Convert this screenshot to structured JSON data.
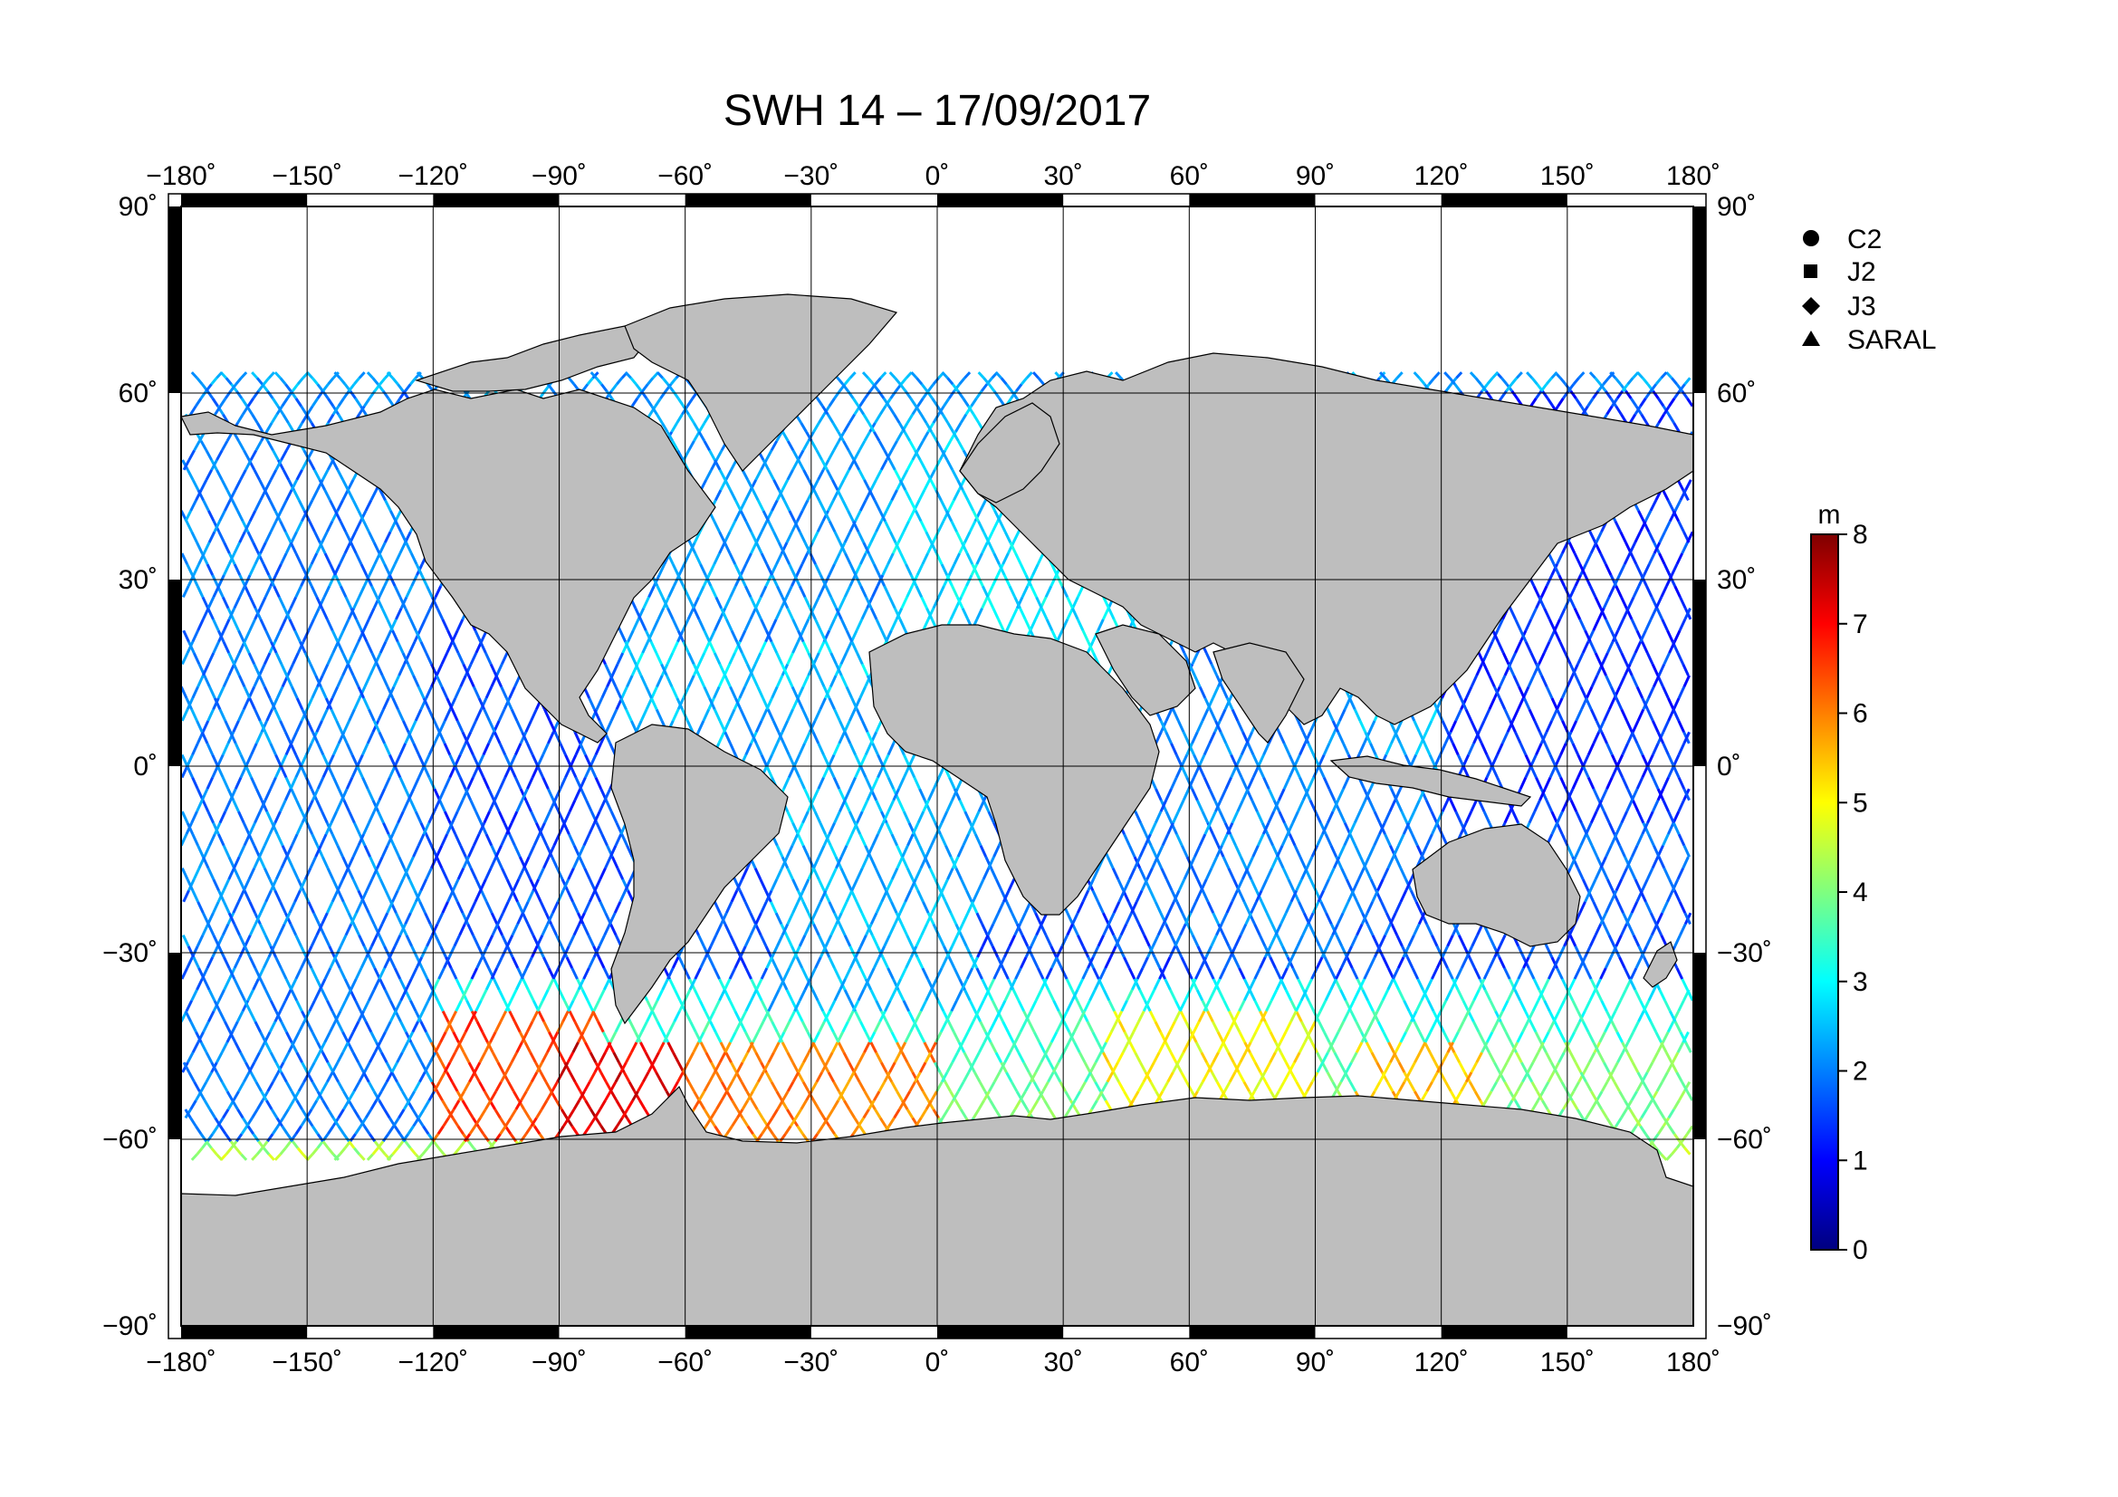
{
  "title": "SWH 14 – 17/09/2017",
  "map": {
    "projection": "equirectangular",
    "lon_range": [
      -180,
      180
    ],
    "lat_range": [
      -90,
      90
    ],
    "lon_ticks": [
      -180,
      -150,
      -120,
      -90,
      -60,
      -30,
      0,
      30,
      60,
      90,
      120,
      150,
      180
    ],
    "lat_ticks": [
      90,
      60,
      30,
      0,
      -30,
      -60,
      -90
    ],
    "lon_tick_labels": [
      "−180˚",
      "−150˚",
      "−120˚",
      "−90˚",
      "−60˚",
      "−30˚",
      "0˚",
      "30˚",
      "60˚",
      "90˚",
      "120˚",
      "150˚",
      "180˚"
    ],
    "lat_tick_labels": [
      "90˚",
      "60˚",
      "30˚",
      "0˚",
      "−30˚",
      "−60˚",
      "−90˚"
    ],
    "grid": true,
    "land_color": "#bebebe",
    "ocean_color": "#ffffff"
  },
  "legend": {
    "placement": "top-right",
    "entries": [
      {
        "label": "C2",
        "marker": "circle"
      },
      {
        "label": "J2",
        "marker": "square"
      },
      {
        "label": "J3",
        "marker": "diamond"
      },
      {
        "label": "SARAL",
        "marker": "triangle"
      }
    ]
  },
  "colorbar": {
    "unit": "m",
    "min": 0,
    "max": 8,
    "tick_values": [
      0,
      1,
      2,
      3,
      4,
      5,
      6,
      7,
      8
    ],
    "tick_labels": [
      "0",
      "1",
      "2",
      "3",
      "4",
      "5",
      "6",
      "7",
      "8"
    ],
    "colormap": "jet",
    "colors": [
      "#00007f",
      "#0000ff",
      "#007fff",
      "#00ffff",
      "#7fff7f",
      "#ffff00",
      "#ff7f00",
      "#ff0000",
      "#7f0000"
    ]
  },
  "chart_data": {
    "type": "scatter",
    "title": "SWH 14 – 17/09/2017",
    "xlabel": "",
    "ylabel": "",
    "xlim": [
      -180,
      180
    ],
    "ylim": [
      -90,
      90
    ],
    "value_unit": "m",
    "value_range": [
      0,
      8
    ],
    "series": [
      {
        "name": "C2",
        "marker": "circle"
      },
      {
        "name": "J2",
        "marker": "square"
      },
      {
        "name": "J3",
        "marker": "diamond"
      },
      {
        "name": "SARAL",
        "marker": "triangle"
      }
    ],
    "swh_regions": [
      {
        "lon": [
          -180,
          -120
        ],
        "lat": [
          -60,
          60
        ],
        "swh": 2.0
      },
      {
        "lon": [
          -120,
          -75
        ],
        "lat": [
          -20,
          30
        ],
        "swh": 1.6
      },
      {
        "lon": [
          -75,
          -10
        ],
        "lat": [
          20,
          60
        ],
        "swh": 2.2
      },
      {
        "lon": [
          -40,
          10
        ],
        "lat": [
          -40,
          10
        ],
        "swh": 2.4
      },
      {
        "lon": [
          50,
          100
        ],
        "lat": [
          -30,
          20
        ],
        "swh": 2.0
      },
      {
        "lon": [
          120,
          180
        ],
        "lat": [
          -10,
          60
        ],
        "swh": 1.4
      },
      {
        "lon": [
          -120,
          -80
        ],
        "lat": [
          -60,
          -40
        ],
        "swh": 6.5
      },
      {
        "lon": [
          -90,
          -55
        ],
        "lat": [
          -62,
          -45
        ],
        "swh": 7.2
      },
      {
        "lon": [
          -60,
          0
        ],
        "lat": [
          -60,
          -45
        ],
        "swh": 6.0
      },
      {
        "lon": [
          40,
          90
        ],
        "lat": [
          -55,
          -40
        ],
        "swh": 5.0
      },
      {
        "lon": [
          100,
          130
        ],
        "lat": [
          -60,
          -45
        ],
        "swh": 5.5
      },
      {
        "lon": [
          130,
          180
        ],
        "lat": [
          -60,
          -45
        ],
        "swh": 4.0
      }
    ]
  }
}
